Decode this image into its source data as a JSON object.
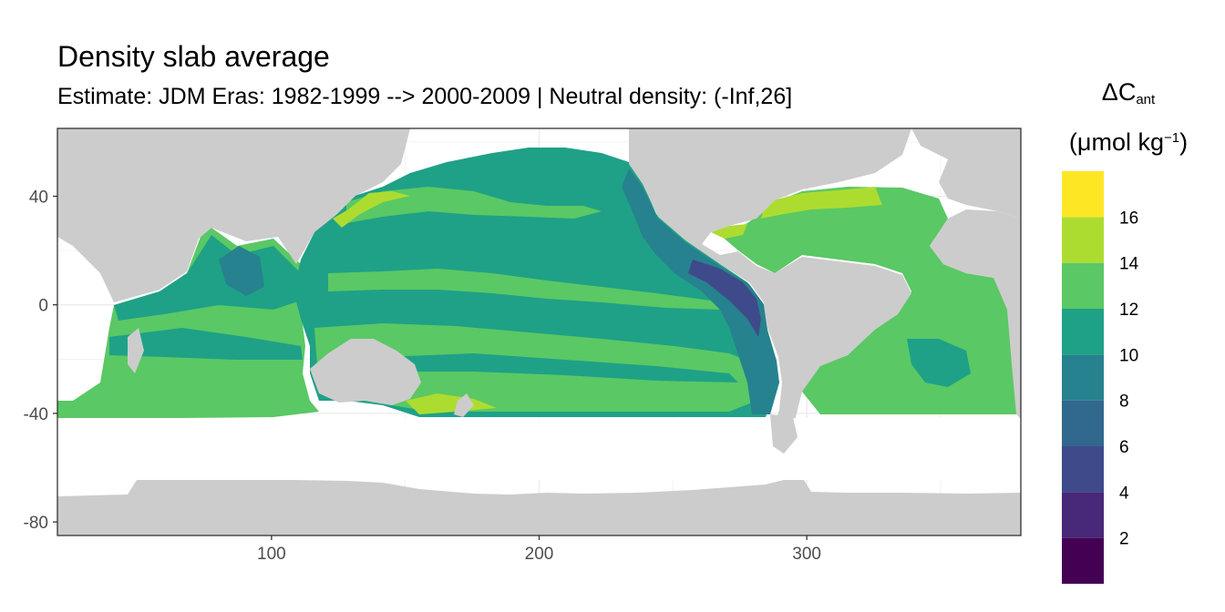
{
  "title": "Density slab average",
  "subtitle": "Estimate: JDM Eras: 1982-1999 --> 2000-2009 | Neutral density: (-Inf,26]",
  "legend": {
    "symbol": "ΔC",
    "subscript": "ant",
    "unit_prefix": "(μmol kg",
    "unit_exponent": "−1",
    "unit_suffix": ")",
    "bins": [
      {
        "min": 0,
        "max": 2,
        "color": "#440154"
      },
      {
        "min": 2,
        "max": 4,
        "color": "#482878"
      },
      {
        "min": 4,
        "max": 6,
        "color": "#3e4a89"
      },
      {
        "min": 6,
        "max": 8,
        "color": "#31688e"
      },
      {
        "min": 8,
        "max": 10,
        "color": "#26828e"
      },
      {
        "min": 10,
        "max": 12,
        "color": "#1fa187"
      },
      {
        "min": 12,
        "max": 14,
        "color": "#5ac864"
      },
      {
        "min": 14,
        "max": 16,
        "color": "#addc30"
      },
      {
        "min": 16,
        "max": 18,
        "color": "#fde725"
      }
    ],
    "tick_labels": [
      "2",
      "4",
      "6",
      "8",
      "10",
      "12",
      "14",
      "16"
    ]
  },
  "chart_data": {
    "type": "heatmap",
    "title": "Density slab average",
    "subtitle": "Estimate: JDM Eras: 1982-1999 --> 2000-2009 | Neutral density: (-Inf,26]",
    "x_ticks": [
      100,
      200,
      300
    ],
    "y_ticks": [
      40,
      0,
      -40,
      -80
    ],
    "xlim": [
      20,
      380
    ],
    "ylim": [
      -85,
      65
    ],
    "land_color": "#cccccc",
    "grid": true,
    "legend_position": "right"
  }
}
